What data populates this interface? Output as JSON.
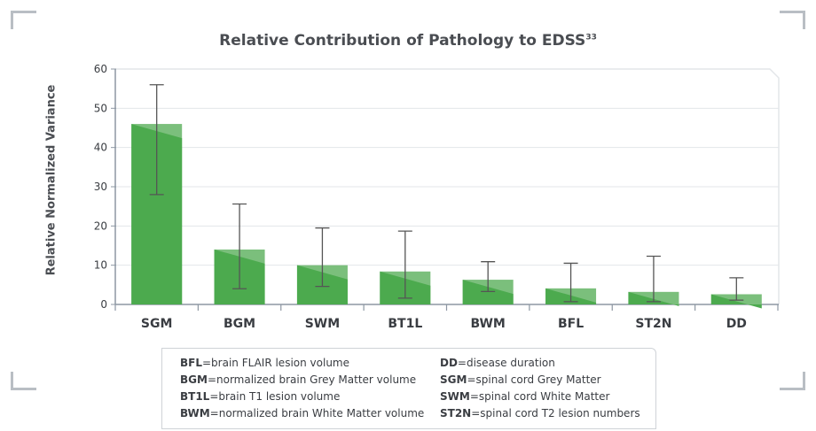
{
  "chart_data": {
    "type": "bar",
    "title": "Relative Contribution of Pathology to EDSS",
    "title_superscript": "33",
    "ylabel": "Relative Normalized Variance",
    "xlabel": "",
    "ylim": [
      0,
      60
    ],
    "yticks": [
      0,
      10,
      20,
      30,
      40,
      50,
      60
    ],
    "grid": true,
    "categories": [
      "SGM",
      "BGM",
      "SWM",
      "BT1L",
      "BWM",
      "BFL",
      "ST2N",
      "DD"
    ],
    "values": [
      46,
      14,
      10,
      8.4,
      6.3,
      4.1,
      3.2,
      2.6
    ],
    "error_upper": [
      56,
      25.6,
      19.5,
      18.7,
      10.9,
      10.5,
      12.3,
      6.8
    ],
    "error_lower": [
      28,
      4,
      4.6,
      1.6,
      3.3,
      0.7,
      0.7,
      1.1
    ],
    "bar_color": "#4caa4e",
    "bar_highlight_color": "#7bbf7c"
  },
  "legend": {
    "left": [
      {
        "abbr": "BFL",
        "desc": "=brain FLAIR lesion volume"
      },
      {
        "abbr": "BGM",
        "desc": "=normalized brain Grey Matter volume"
      },
      {
        "abbr": "BT1L",
        "desc": "=brain T1 lesion volume"
      },
      {
        "abbr": "BWM",
        "desc": "=normalized brain White Matter volume"
      }
    ],
    "right": [
      {
        "abbr": "DD",
        "desc": "=disease duration"
      },
      {
        "abbr": "SGM",
        "desc": "=spinal cord Grey Matter"
      },
      {
        "abbr": "SWM",
        "desc": "=spinal cord White Matter"
      },
      {
        "abbr": "ST2N",
        "desc": "=spinal cord T2 lesion numbers"
      }
    ]
  }
}
